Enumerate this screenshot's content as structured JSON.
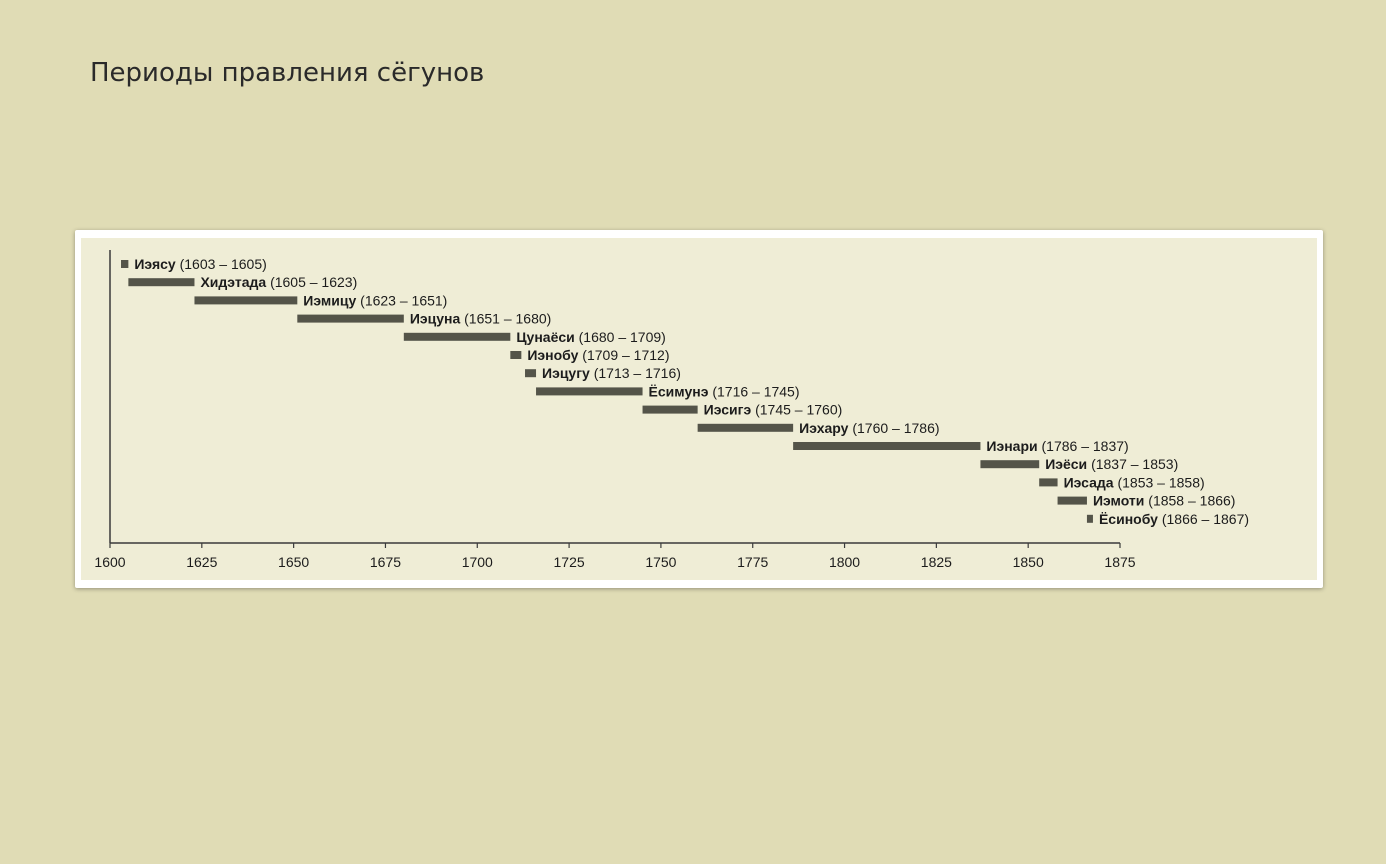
{
  "slide": {
    "title": "Периоды правления сёгунов"
  },
  "chart_data": {
    "type": "bar",
    "orientation": "horizontal-timeline",
    "xlim": [
      1600,
      1875
    ],
    "x_ticks": [
      1600,
      1625,
      1650,
      1675,
      1700,
      1725,
      1750,
      1775,
      1800,
      1825,
      1850,
      1875
    ],
    "grid": false,
    "colors": {
      "bar": "#545449",
      "axis": "#3a3a3a",
      "background": "#efedd6"
    },
    "series": [
      {
        "name": "Иэясу",
        "start": 1603,
        "end": 1605,
        "label": "(1603 – 1605)"
      },
      {
        "name": "Хидэтада",
        "start": 1605,
        "end": 1623,
        "label": "(1605 – 1623)"
      },
      {
        "name": "Иэмицу",
        "start": 1623,
        "end": 1651,
        "label": "(1623 – 1651)"
      },
      {
        "name": "Иэцуна",
        "start": 1651,
        "end": 1680,
        "label": "(1651 – 1680)"
      },
      {
        "name": "Цунаёси",
        "start": 1680,
        "end": 1709,
        "label": "(1680 – 1709)"
      },
      {
        "name": "Иэнобу",
        "start": 1709,
        "end": 1712,
        "label": "(1709 – 1712)"
      },
      {
        "name": "Иэцугу",
        "start": 1713,
        "end": 1716,
        "label": "(1713 – 1716)"
      },
      {
        "name": "Ёсимунэ",
        "start": 1716,
        "end": 1745,
        "label": "(1716 – 1745)"
      },
      {
        "name": "Иэсигэ",
        "start": 1745,
        "end": 1760,
        "label": "(1745 – 1760)"
      },
      {
        "name": "Иэхару",
        "start": 1760,
        "end": 1786,
        "label": "(1760 – 1786)"
      },
      {
        "name": "Иэнари",
        "start": 1786,
        "end": 1837,
        "label": "(1786 – 1837)"
      },
      {
        "name": "Иэёси",
        "start": 1837,
        "end": 1853,
        "label": "(1837 – 1853)"
      },
      {
        "name": "Иэсада",
        "start": 1853,
        "end": 1858,
        "label": "(1853 – 1858)"
      },
      {
        "name": "Иэмоти",
        "start": 1858,
        "end": 1866,
        "label": "(1858 – 1866)"
      },
      {
        "name": "Ёсинобу",
        "start": 1866,
        "end": 1867,
        "label": "(1866 – 1867)"
      }
    ]
  }
}
